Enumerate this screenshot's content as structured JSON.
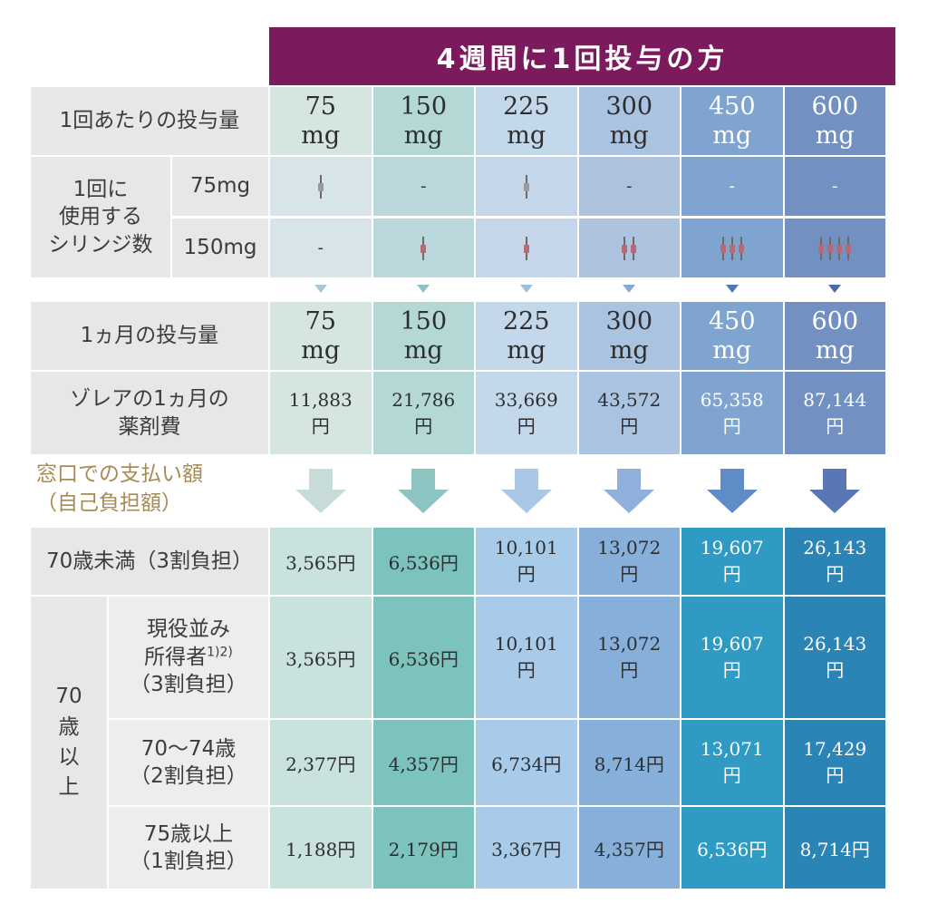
{
  "banner": "4週間に1回投与の方",
  "labels": {
    "dose_per_time": "1回あたりの投与量",
    "syringe_group": [
      "1回に",
      "使用する",
      "シリンジ数"
    ],
    "syringe_75": "75mg",
    "syringe_150": "150mg",
    "monthly_dose": "1ヵ月の投与量",
    "monthly_cost": [
      "ゾレアの1ヵ月の",
      "薬剤費"
    ],
    "window_payment": [
      "窓口での支払い額",
      "（自己負担額）"
    ],
    "under70": "70歳未満（3割負担）",
    "over70": [
      "70",
      "歳",
      "以",
      "上"
    ],
    "working": [
      "現役並み",
      "所得者",
      "（3割負担）"
    ],
    "working_sup": "1)2)",
    "age7074": [
      "70〜74歳",
      "（2割負担）"
    ],
    "age75": [
      "75歳以上",
      "（1割負担）"
    ]
  },
  "unit": "mg",
  "yen": "円",
  "dash": "-",
  "columns": [
    {
      "dose": "75",
      "syr75": 1,
      "syr150": 0,
      "monthly": "75",
      "cost": "11,883",
      "under70": [
        "3,565円"
      ],
      "working": [
        "3,565円"
      ],
      "age7074": [
        "2,377円"
      ],
      "age75": [
        "1,188円"
      ],
      "bg": "#d5e6e0",
      "bg2": "#d8e5e8",
      "bg3": "#c9e2de",
      "ink": "#2e2e2e"
    },
    {
      "dose": "150",
      "syr75": 0,
      "syr150": 1,
      "monthly": "150",
      "cost": "21,786",
      "under70": [
        "6,536円"
      ],
      "working": [
        "6,536円"
      ],
      "age7074": [
        "4,357円"
      ],
      "age75": [
        "2,179円"
      ],
      "bg": "#b3d8d6",
      "bg2": "#bad8dc",
      "bg3": "#7cc3bd",
      "ink": "#2e2e2e"
    },
    {
      "dose": "225",
      "syr75": 1,
      "syr150": 1,
      "monthly": "225",
      "cost": "33,669",
      "under70": [
        "10,101",
        "円"
      ],
      "working": [
        "10,101",
        "円"
      ],
      "age7074": [
        "6,734円"
      ],
      "age75": [
        "3,367円"
      ],
      "bg": "#c4d8ec",
      "bg2": "#c6d6ea",
      "bg3": "#a8cbea",
      "ink": "#2e2e2e"
    },
    {
      "dose": "300",
      "syr75": 0,
      "syr150": 2,
      "monthly": "300",
      "cost": "43,572",
      "under70": [
        "13,072",
        "円"
      ],
      "working": [
        "13,072",
        "円"
      ],
      "age7074": [
        "8,714円"
      ],
      "age75": [
        "4,357円"
      ],
      "bg": "#a9c3e1",
      "bg2": "#acc2df",
      "bg3": "#86b0da",
      "ink": "#2e2e2e"
    },
    {
      "dose": "450",
      "syr75": 0,
      "syr150": 3,
      "monthly": "450",
      "cost": "65,358",
      "under70": [
        "19,607",
        "円"
      ],
      "working": [
        "19,607",
        "円"
      ],
      "age7074": [
        "13,071",
        "円"
      ],
      "age75": [
        "6,536円"
      ],
      "bg": "#7ea4cf",
      "bg2": "#7ea4cf",
      "bg3": "#2f9ac4",
      "ink": "#ffffff"
    },
    {
      "dose": "600",
      "syr75": 0,
      "syr150": 4,
      "monthly": "600",
      "cost": "87,144",
      "under70": [
        "26,143",
        "円"
      ],
      "working": [
        "26,143",
        "円"
      ],
      "age7074": [
        "17,429",
        "円"
      ],
      "age75": [
        "8,714円"
      ],
      "bg": "#7390c3",
      "bg2": "#7390c3",
      "bg3": "#2a84b6",
      "ink": "#ffffff"
    }
  ],
  "colors": {
    "banner": "#7b1a5c",
    "label_bg": "#e7e7e7",
    "window_label": "#a88a54",
    "arrow": [
      "#c7dcd8",
      "#8cc4c1",
      "#a9c7e6",
      "#8eb0da",
      "#5f8cc7",
      "#5877b4"
    ],
    "tri": [
      "#a9c7d1",
      "#8ec3c4",
      "#9fbfe0",
      "#88a9d5",
      "#4d78b4",
      "#4f68a8"
    ]
  }
}
